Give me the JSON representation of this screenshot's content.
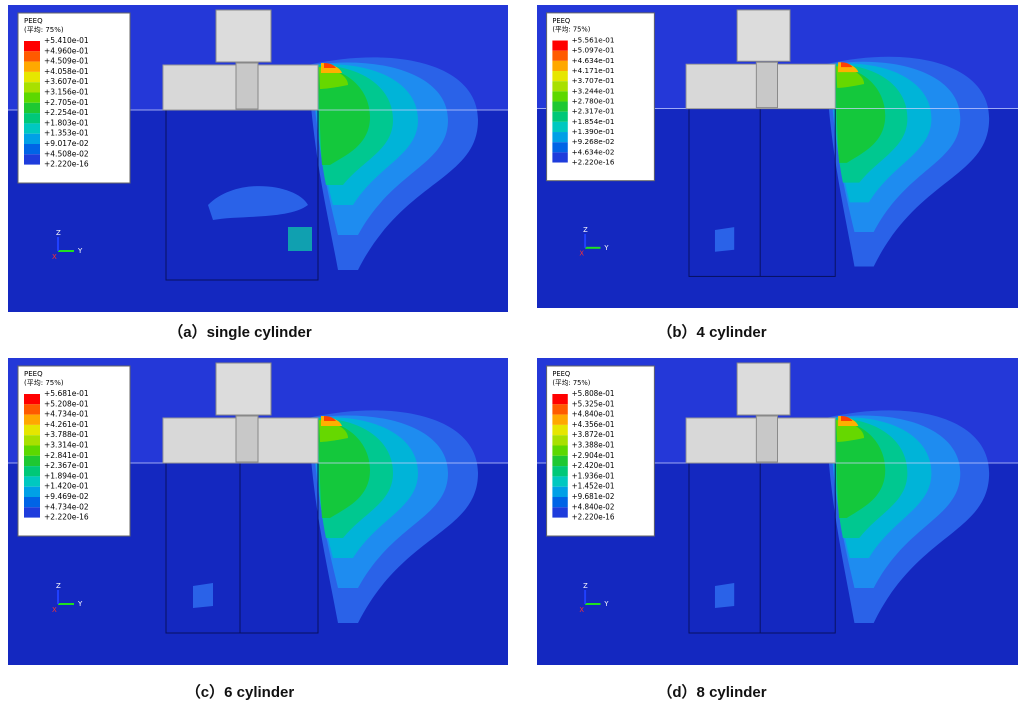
{
  "triad_labels": [
    "Z",
    "Y",
    "X"
  ],
  "panels": [
    {
      "legend_title": "PEEQ",
      "legend_subtitle": "(平均: 75%)",
      "values": [
        "+5.410e-01",
        "+4.960e-01",
        "+4.509e-01",
        "+4.058e-01",
        "+3.607e-01",
        "+3.156e-01",
        "+2.705e-01",
        "+2.254e-01",
        "+1.803e-01",
        "+1.353e-01",
        "+9.017e-02",
        "+4.508e-02",
        "+2.220e-16"
      ],
      "caption": "（a）single cylinder"
    },
    {
      "legend_title": "PEEQ",
      "legend_subtitle": "(平均: 75%)",
      "values": [
        "+5.561e-01",
        "+5.097e-01",
        "+4.634e-01",
        "+4.171e-01",
        "+3.707e-01",
        "+3.244e-01",
        "+2.780e-01",
        "+2.317e-01",
        "+1.854e-01",
        "+1.390e-01",
        "+9.268e-02",
        "+4.634e-02",
        "+2.220e-16"
      ],
      "caption": "（b）4 cylinder"
    },
    {
      "legend_title": "PEEQ",
      "legend_subtitle": "(平均: 75%)",
      "values": [
        "+5.681e-01",
        "+5.208e-01",
        "+4.734e-01",
        "+4.261e-01",
        "+3.788e-01",
        "+3.314e-01",
        "+2.841e-01",
        "+2.367e-01",
        "+1.894e-01",
        "+1.420e-01",
        "+9.469e-02",
        "+4.734e-02",
        "+2.220e-16"
      ],
      "caption": "（c）6 cylinder"
    },
    {
      "legend_title": "PEEQ",
      "legend_subtitle": "(平均: 75%)",
      "values": [
        "+5.808e-01",
        "+5.325e-01",
        "+4.840e-01",
        "+4.356e-01",
        "+3.872e-01",
        "+3.388e-01",
        "+2.904e-01",
        "+2.420e-01",
        "+1.936e-01",
        "+1.452e-01",
        "+9.681e-02",
        "+4.840e-02",
        "+2.220e-16"
      ],
      "caption": "（d）8 cylinder"
    }
  ]
}
